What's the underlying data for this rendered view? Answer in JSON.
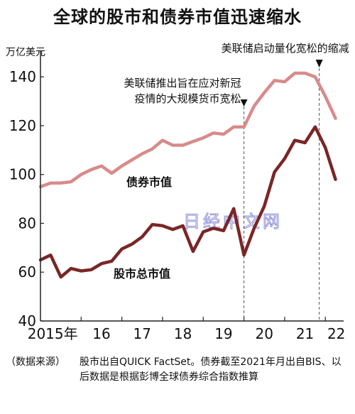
{
  "chart_data": {
    "type": "line",
    "title": "全球的股市和债券市值迅速缩水",
    "ylabel": "万亿美元",
    "ylim": [
      40,
      145
    ],
    "y_ticks": [
      40,
      60,
      80,
      100,
      120,
      140
    ],
    "x_tick_labels": [
      "2015年",
      "16",
      "17",
      "18",
      "19",
      "20",
      "21",
      "22"
    ],
    "grid": false,
    "x": [
      2015.0,
      2015.25,
      2015.5,
      2015.75,
      2016.0,
      2016.25,
      2016.5,
      2016.75,
      2017.0,
      2017.25,
      2017.5,
      2017.75,
      2018.0,
      2018.25,
      2018.5,
      2018.75,
      2019.0,
      2019.25,
      2019.5,
      2019.75,
      2020.0,
      2020.25,
      2020.5,
      2020.75,
      2021.0,
      2021.25,
      2021.5,
      2021.75,
      2022.0,
      2022.25
    ],
    "series": [
      {
        "name": "债券市值",
        "color": "#d98a8a",
        "values": [
          95,
          96.5,
          96.5,
          97,
          100,
          102,
          103.5,
          100.5,
          103.5,
          106,
          108.5,
          110.5,
          114,
          112,
          112,
          113.5,
          115,
          117,
          116.5,
          119.5,
          119.5,
          128,
          133.5,
          138.5,
          138,
          141.5,
          141.5,
          140,
          132,
          123
        ]
      },
      {
        "name": "股市总市值",
        "color": "#7a2626",
        "values": [
          65,
          67,
          58,
          61.5,
          60.5,
          61,
          63.5,
          64.5,
          69.5,
          71.5,
          74.5,
          79.5,
          79,
          77.5,
          79,
          68.5,
          76.5,
          78,
          77,
          86,
          67,
          78,
          87,
          101,
          106.5,
          114,
          113,
          119.5,
          111,
          98
        ]
      }
    ],
    "annotations": [
      {
        "lines": [
          "美联储推出旨在应对新冠",
          "疫情的大规模货币宽松"
        ],
        "x": 2020.0
      },
      {
        "lines": [
          "美联储启动量化宽松的缩减"
        ],
        "x": 2021.85
      }
    ]
  },
  "source": {
    "label": "（数据来源）",
    "text": "股市出自QUICK FactSet。债券截至2021年月出自BIS、以后数据是根据彭博全球债券综合指数推算"
  },
  "watermark": "日经中文网"
}
